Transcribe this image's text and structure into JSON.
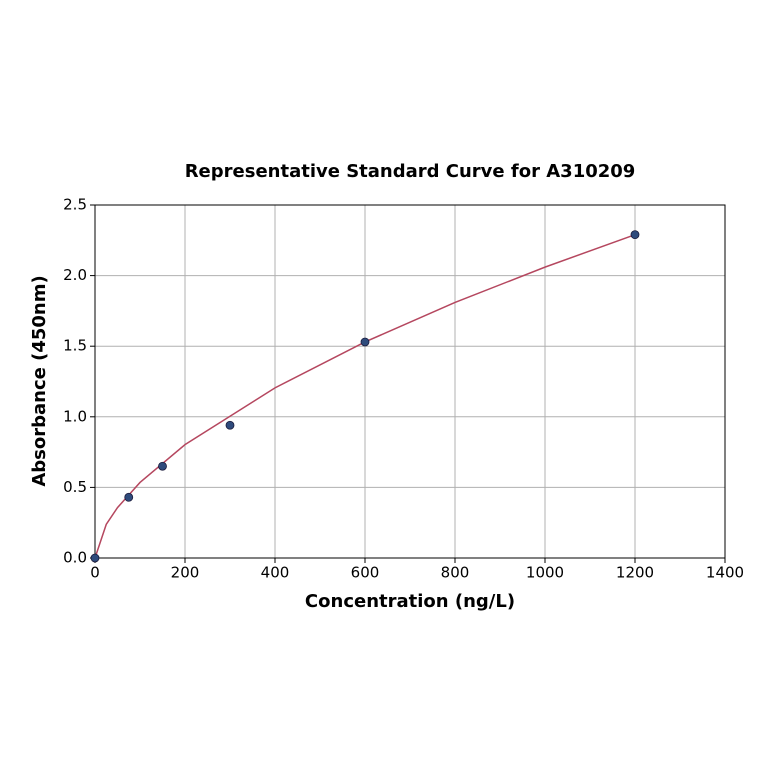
{
  "chart_data": {
    "type": "scatter",
    "title": "Representative Standard Curve for A310209",
    "xlabel": "Concentration (ng/L)",
    "ylabel": "Absorbance (450nm)",
    "x": [
      0,
      75,
      150,
      300,
      600,
      1200
    ],
    "series": [
      {
        "color": "#2f4b7c",
        "values": [
          0,
          0.43,
          0.65,
          0.94,
          1.53,
          2.29
        ]
      }
    ],
    "fit": {
      "color": "#b5475f",
      "x": [
        0,
        25,
        50,
        100,
        200,
        400,
        600,
        800,
        1000,
        1200
      ],
      "values": [
        0,
        0.238,
        0.357,
        0.535,
        0.803,
        1.205,
        1.53,
        1.81,
        2.06,
        2.29
      ]
    },
    "xlim": [
      0,
      1400
    ],
    "xticks": [
      0,
      200,
      400,
      600,
      800,
      1000,
      1200,
      1400
    ],
    "ylim": [
      0,
      2.5
    ],
    "yticks": [
      {
        "value": 0,
        "label": "0.0"
      },
      {
        "value": 0.5,
        "label": "0.5"
      },
      {
        "value": 1,
        "label": "1.0"
      },
      {
        "value": 1.5,
        "label": "1.5"
      },
      {
        "value": 2,
        "label": "2.0"
      },
      {
        "value": 2.5,
        "label": "2.5"
      }
    ],
    "grid": true
  }
}
